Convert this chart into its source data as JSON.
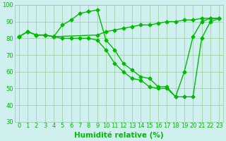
{
  "line1_x": [
    0,
    1,
    2,
    3,
    4,
    5,
    6,
    7,
    8,
    9,
    10,
    11,
    12,
    13,
    14,
    15,
    16,
    17,
    18,
    19,
    20,
    21,
    22,
    23
  ],
  "line1_y": [
    81,
    84,
    82,
    82,
    81,
    88,
    91,
    95,
    96,
    97,
    79,
    73,
    65,
    61,
    57,
    56,
    51,
    51,
    45,
    60,
    81,
    90,
    92,
    92
  ],
  "line2_x": [
    0,
    1,
    2,
    3,
    4,
    9,
    10,
    11,
    12,
    13,
    14,
    15,
    16,
    17,
    18,
    19,
    20,
    21,
    22,
    23
  ],
  "line2_y": [
    81,
    84,
    82,
    82,
    81,
    82,
    84,
    85,
    86,
    87,
    88,
    88,
    89,
    90,
    90,
    91,
    91,
    92,
    92,
    92
  ],
  "line3_x": [
    0,
    1,
    2,
    3,
    4,
    5,
    6,
    7,
    8,
    9,
    10,
    11,
    12,
    13,
    14,
    15,
    16,
    17,
    18,
    19,
    20,
    21,
    22,
    23
  ],
  "line3_y": [
    81,
    84,
    82,
    82,
    81,
    80,
    80,
    80,
    80,
    79,
    73,
    65,
    60,
    56,
    55,
    51,
    50,
    50,
    45,
    45,
    45,
    80,
    90,
    92
  ],
  "color": "#00bb00",
  "bg_color": "#d0f0f0",
  "grid_color": "#99cc99",
  "xlabel": "Humidité relative (%)",
  "xlim": [
    -0.5,
    23.5
  ],
  "ylim": [
    30,
    100
  ],
  "yticks": [
    30,
    40,
    50,
    60,
    70,
    80,
    90,
    100
  ],
  "xticks": [
    0,
    1,
    2,
    3,
    4,
    5,
    6,
    7,
    8,
    9,
    10,
    11,
    12,
    13,
    14,
    15,
    16,
    17,
    18,
    19,
    20,
    21,
    22,
    23
  ],
  "marker": "D",
  "markersize": 2.5,
  "linewidth": 1.0,
  "xlabel_fontsize": 7.5,
  "tick_fontsize": 6
}
